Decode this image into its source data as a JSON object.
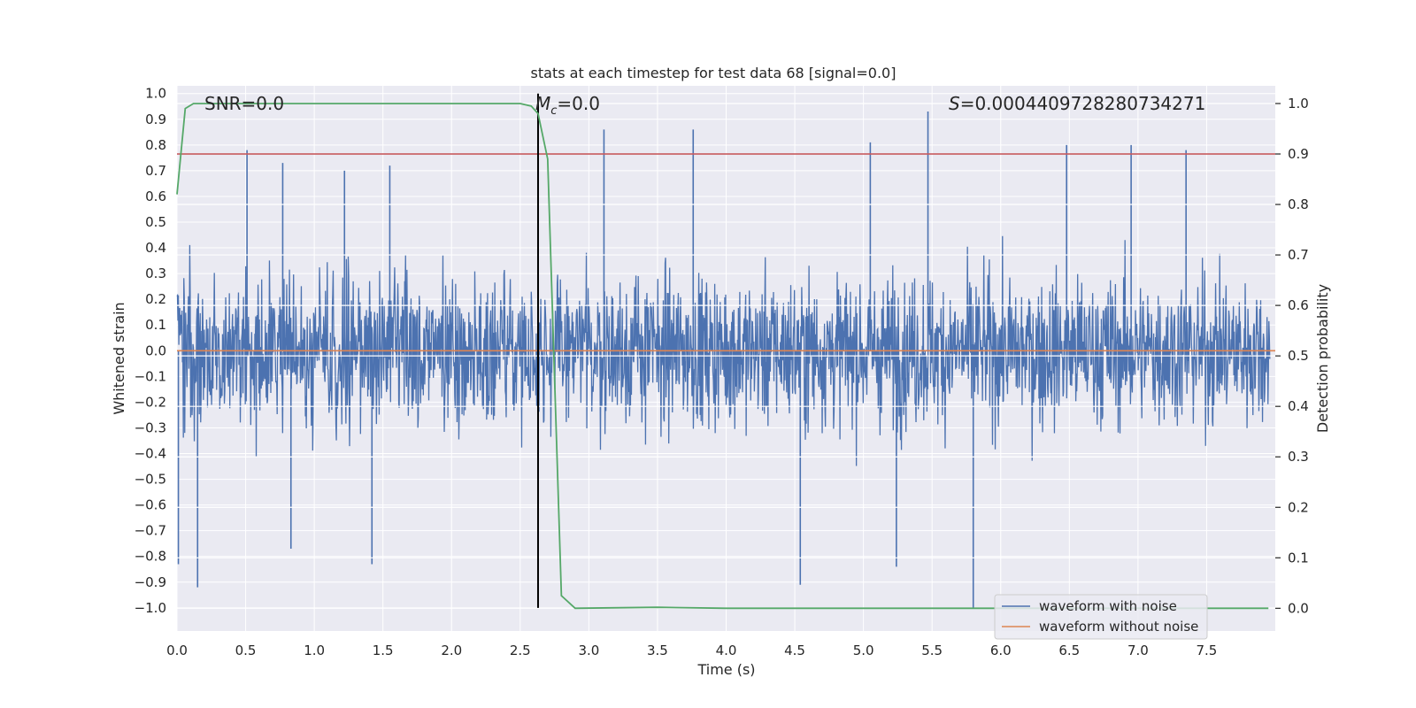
{
  "chart_data": {
    "type": "line",
    "title": "stats at each timestep for test data 68 [signal=0.0]",
    "xlabel": "Time (s)",
    "ylabel": "Whitened strain",
    "y2label": "Detection probability",
    "xlim": [
      0.0,
      8.0
    ],
    "ylim": [
      -1.09,
      1.03
    ],
    "y2lim": [
      -0.045,
      1.035
    ],
    "x_ticks": [
      "0.0",
      "0.5",
      "1.0",
      "1.5",
      "2.0",
      "2.5",
      "3.0",
      "3.5",
      "4.0",
      "4.5",
      "5.0",
      "5.5",
      "6.0",
      "6.5",
      "7.0",
      "7.5"
    ],
    "x_tick_values": [
      0.0,
      0.5,
      1.0,
      1.5,
      2.0,
      2.5,
      3.0,
      3.5,
      4.0,
      4.5,
      5.0,
      5.5,
      6.0,
      6.5,
      7.0,
      7.5
    ],
    "y_ticks": [
      "1.0",
      "0.9",
      "0.8",
      "0.7",
      "0.6",
      "0.5",
      "0.4",
      "0.3",
      "0.2",
      "0.1",
      "0.0",
      "−0.1",
      "−0.2",
      "−0.3",
      "−0.4",
      "−0.5",
      "−0.6",
      "−0.7",
      "−0.8",
      "−0.9",
      "−1.0"
    ],
    "y_tick_values": [
      1.0,
      0.9,
      0.8,
      0.7,
      0.6,
      0.5,
      0.4,
      0.3,
      0.2,
      0.1,
      0.0,
      -0.1,
      -0.2,
      -0.3,
      -0.4,
      -0.5,
      -0.6,
      -0.7,
      -0.8,
      -0.9,
      -1.0
    ],
    "y2_ticks": [
      "1.0",
      "0.9",
      "0.8",
      "0.7",
      "0.6",
      "0.5",
      "0.4",
      "0.3",
      "0.2",
      "0.1",
      "0.0"
    ],
    "y2_tick_values": [
      1.0,
      0.9,
      0.8,
      0.7,
      0.6,
      0.5,
      0.4,
      0.3,
      0.2,
      0.1,
      0.0
    ],
    "annotations": {
      "snr": "SNR=0.0",
      "mc_symbol": "M",
      "mc_subscript": "c",
      "mc_value": "=0.0",
      "s_symbol": "S",
      "s_value": "=0.0004409728280734271"
    },
    "series": [
      {
        "name": "waveform with noise",
        "color": "#4c72b0",
        "axis": "left",
        "description": "dense noise, approx. range -1.0 to 0.93",
        "sample_seed": 68,
        "spikes": [
          {
            "x": 0.01,
            "y": -0.83
          },
          {
            "x": 0.15,
            "y": -0.92
          },
          {
            "x": 0.51,
            "y": 0.78
          },
          {
            "x": 0.77,
            "y": 0.73
          },
          {
            "x": 0.83,
            "y": -0.77
          },
          {
            "x": 1.22,
            "y": 0.7
          },
          {
            "x": 1.42,
            "y": -0.83
          },
          {
            "x": 1.55,
            "y": 0.72
          },
          {
            "x": 2.63,
            "y": 0.75
          },
          {
            "x": 3.11,
            "y": 0.86
          },
          {
            "x": 3.76,
            "y": 0.86
          },
          {
            "x": 4.54,
            "y": -0.91
          },
          {
            "x": 5.05,
            "y": 0.81
          },
          {
            "x": 5.24,
            "y": -0.84
          },
          {
            "x": 5.47,
            "y": 0.93
          },
          {
            "x": 5.8,
            "y": -1.0
          },
          {
            "x": 6.48,
            "y": 0.8
          },
          {
            "x": 6.95,
            "y": 0.8
          },
          {
            "x": 7.35,
            "y": 0.78
          }
        ]
      },
      {
        "name": "waveform without noise",
        "color": "#dd8452",
        "axis": "left",
        "x": [
          0.0,
          8.0
        ],
        "y": [
          0.0,
          0.0
        ]
      },
      {
        "name": "detection probability",
        "color": "#55a868",
        "axis": "right",
        "x": [
          0.0,
          0.06,
          0.12,
          0.5,
          1.0,
          2.0,
          2.5,
          2.58,
          2.63,
          2.7,
          2.8,
          2.9,
          3.5,
          4.0,
          5.0,
          6.0,
          7.0,
          7.95
        ],
        "y": [
          0.82,
          0.99,
          1.0,
          1.0,
          1.0,
          1.0,
          1.0,
          0.995,
          0.98,
          0.89,
          0.025,
          0.0,
          0.002,
          0.0,
          0.0,
          0.0,
          0.0,
          0.0
        ]
      }
    ],
    "threshold_line": {
      "color": "#c44e52",
      "axis": "right",
      "value": 0.9
    },
    "vertical_line": {
      "color": "#000000",
      "x": 2.63,
      "y_range": [
        -1.0,
        1.0
      ]
    },
    "legend": {
      "placement": "lower-right",
      "entries": [
        {
          "label": "waveform with noise",
          "color": "#4c72b0"
        },
        {
          "label": "waveform without noise",
          "color": "#dd8452"
        }
      ]
    }
  }
}
